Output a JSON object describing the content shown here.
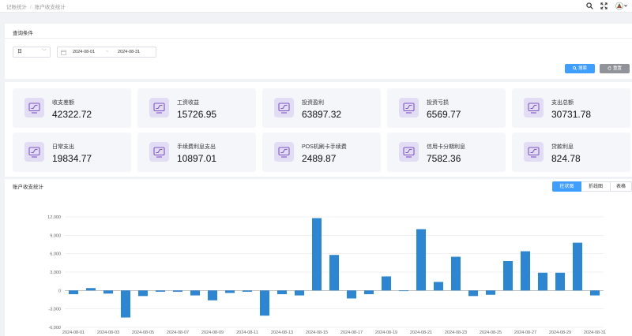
{
  "breadcrumb": {
    "parent": "记账统计",
    "separator": "/",
    "current": "账户收支统计"
  },
  "query": {
    "title": "查询条件",
    "period_select": "日",
    "date_start": "2024-08-01",
    "date_sep": "~",
    "date_end": "2024-08-31",
    "search_label": "搜索",
    "reset_label": "重置"
  },
  "stats": [
    {
      "label": "收支差额",
      "value": "42322.72"
    },
    {
      "label": "工资收益",
      "value": "15726.95"
    },
    {
      "label": "投资盈利",
      "value": "63897.32"
    },
    {
      "label": "投资亏损",
      "value": "6569.77"
    },
    {
      "label": "支出总额",
      "value": "30731.78"
    },
    {
      "label": "日常支出",
      "value": "19834.77"
    },
    {
      "label": "手续费利息支出",
      "value": "10897.01"
    },
    {
      "label": "POS机刷卡手续费",
      "value": "2489.87"
    },
    {
      "label": "信用卡分期利息",
      "value": "7582.36"
    },
    {
      "label": "贷款利息",
      "value": "824.78"
    }
  ],
  "chart_section": {
    "title": "账户收支统计",
    "tabs": [
      "柱状图",
      "折线图",
      "表格"
    ],
    "active_tab": 0
  },
  "colors": {
    "accent": "#409eff",
    "bar": "#2f86d0",
    "icon_bg": "#e3dcf5",
    "icon_fg": "#7e57c2"
  },
  "chart_data": {
    "type": "bar",
    "ylim": [
      -6000,
      12000
    ],
    "yticks": [
      -6000,
      -3000,
      0,
      3000,
      6000,
      9000,
      12000
    ],
    "ytick_labels": [
      "-6,000",
      "-3,000",
      "0",
      "3,000",
      "6,000",
      "9,000",
      "12,000"
    ],
    "categories": [
      "2024-08-01",
      "2024-08-02",
      "2024-08-03",
      "2024-08-04",
      "2024-08-05",
      "2024-08-06",
      "2024-08-07",
      "2024-08-08",
      "2024-08-09",
      "2024-08-10",
      "2024-08-11",
      "2024-08-12",
      "2024-08-13",
      "2024-08-14",
      "2024-08-15",
      "2024-08-16",
      "2024-08-17",
      "2024-08-18",
      "2024-08-19",
      "2024-08-20",
      "2024-08-21",
      "2024-08-22",
      "2024-08-23",
      "2024-08-24",
      "2024-08-25",
      "2024-08-26",
      "2024-08-27",
      "2024-08-28",
      "2024-08-29",
      "2024-08-30",
      "2024-08-31"
    ],
    "xtick_labels": [
      "2024-08-01",
      "2024-08-03",
      "2024-08-05",
      "2024-08-07",
      "2024-08-09",
      "2024-08-11",
      "2024-08-13",
      "2024-08-15",
      "2024-08-17",
      "2024-08-19",
      "2024-08-21",
      "2024-08-23",
      "2024-08-25",
      "2024-08-27",
      "2024-08-29",
      "2024-08-31"
    ],
    "values": [
      -600,
      400,
      -500,
      -4400,
      -900,
      -200,
      -200,
      -800,
      -1600,
      -400,
      -200,
      -4100,
      -600,
      -800,
      11800,
      5800,
      -1300,
      -600,
      2300,
      -100,
      10000,
      1400,
      5500,
      -900,
      -700,
      4800,
      6400,
      2900,
      2900,
      7800,
      -800
    ]
  }
}
